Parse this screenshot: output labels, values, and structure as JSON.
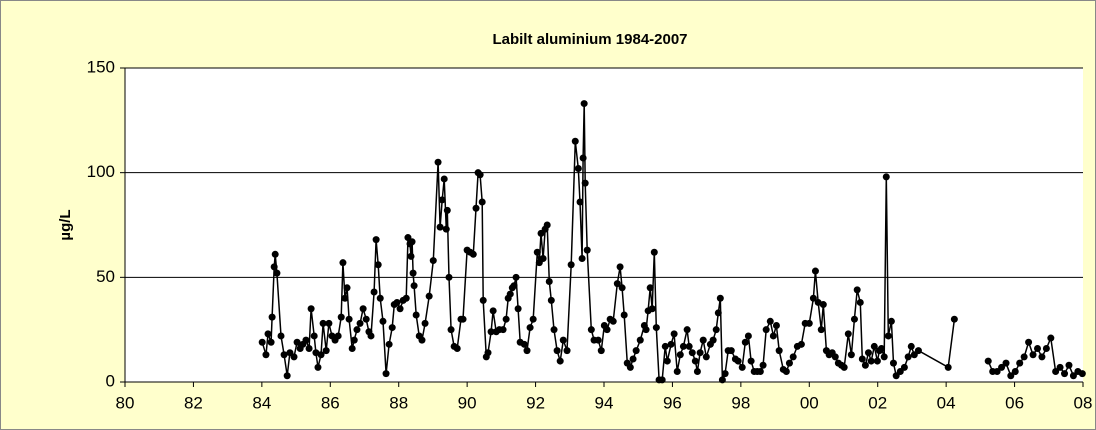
{
  "chart_data": {
    "type": "line",
    "title": "Labilt aluminium 1984-2007",
    "y_label": "µg/L",
    "color": "#000000",
    "marker": "circle",
    "grid": true,
    "xlim": [
      1980,
      2008
    ],
    "xticks": [
      {
        "value": 1980,
        "label": "80"
      },
      {
        "value": 1982,
        "label": "82"
      },
      {
        "value": 1984,
        "label": "84"
      },
      {
        "value": 1986,
        "label": "86"
      },
      {
        "value": 1988,
        "label": "88"
      },
      {
        "value": 1990,
        "label": "90"
      },
      {
        "value": 1992,
        "label": "92"
      },
      {
        "value": 1994,
        "label": "94"
      },
      {
        "value": 1996,
        "label": "96"
      },
      {
        "value": 1998,
        "label": "98"
      },
      {
        "value": 2000,
        "label": "00"
      },
      {
        "value": 2002,
        "label": "02"
      },
      {
        "value": 2004,
        "label": "04"
      },
      {
        "value": 2006,
        "label": "06"
      },
      {
        "value": 2008,
        "label": "08"
      }
    ],
    "ylim": [
      0,
      150
    ],
    "yticks": [
      0,
      50,
      100,
      150
    ],
    "x": [
      1984.01,
      1984.12,
      1984.18,
      1984.27,
      1984.3,
      1984.36,
      1984.39,
      1984.44,
      1984.56,
      1984.65,
      1984.74,
      1984.82,
      1984.94,
      1985.03,
      1985.12,
      1985.2,
      1985.29,
      1985.38,
      1985.44,
      1985.53,
      1985.58,
      1985.64,
      1985.73,
      1985.79,
      1985.88,
      1985.96,
      1986.05,
      1986.14,
      1986.23,
      1986.32,
      1986.37,
      1986.43,
      1986.49,
      1986.55,
      1986.64,
      1986.7,
      1986.78,
      1986.87,
      1986.96,
      1987.05,
      1987.13,
      1987.19,
      1987.28,
      1987.34,
      1987.4,
      1987.46,
      1987.54,
      1987.63,
      1987.72,
      1987.81,
      1987.87,
      1987.95,
      1988.04,
      1988.13,
      1988.22,
      1988.27,
      1988.33,
      1988.36,
      1988.39,
      1988.42,
      1988.45,
      1988.51,
      1988.6,
      1988.68,
      1988.77,
      1988.89,
      1989.01,
      1989.15,
      1989.21,
      1989.27,
      1989.33,
      1989.39,
      1989.42,
      1989.47,
      1989.53,
      1989.62,
      1989.71,
      1989.82,
      1989.88,
      1990.0,
      1990.09,
      1990.18,
      1990.26,
      1990.32,
      1990.38,
      1990.44,
      1990.47,
      1990.56,
      1990.61,
      1990.7,
      1990.76,
      1990.85,
      1990.94,
      1991.05,
      1991.14,
      1991.2,
      1991.26,
      1991.32,
      1991.37,
      1991.43,
      1991.49,
      1991.55,
      1991.67,
      1991.75,
      1991.84,
      1991.93,
      1992.05,
      1992.11,
      1992.16,
      1992.22,
      1992.28,
      1992.34,
      1992.4,
      1992.46,
      1992.54,
      1992.63,
      1992.72,
      1992.81,
      1992.92,
      1993.04,
      1993.16,
      1993.25,
      1993.3,
      1993.36,
      1993.39,
      1993.42,
      1993.45,
      1993.51,
      1993.63,
      1993.71,
      1993.83,
      1993.92,
      1994.01,
      1994.09,
      1994.18,
      1994.27,
      1994.39,
      1994.47,
      1994.53,
      1994.59,
      1994.68,
      1994.77,
      1994.85,
      1994.94,
      1995.06,
      1995.18,
      1995.23,
      1995.29,
      1995.35,
      1995.41,
      1995.47,
      1995.53,
      1995.61,
      1995.7,
      1995.79,
      1995.85,
      1995.96,
      1996.05,
      1996.14,
      1996.23,
      1996.32,
      1996.43,
      1996.49,
      1996.58,
      1996.67,
      1996.73,
      1996.81,
      1996.9,
      1996.99,
      1997.11,
      1997.19,
      1997.28,
      1997.34,
      1997.4,
      1997.46,
      1997.54,
      1997.63,
      1997.72,
      1997.84,
      1997.92,
      1998.04,
      1998.13,
      1998.22,
      1998.3,
      1998.39,
      1998.48,
      1998.57,
      1998.65,
      1998.74,
      1998.86,
      1998.95,
      1999.04,
      1999.12,
      1999.24,
      1999.33,
      1999.42,
      1999.53,
      1999.65,
      1999.77,
      1999.88,
      2000.0,
      2000.12,
      2000.18,
      2000.26,
      2000.35,
      2000.41,
      2000.5,
      2000.58,
      2000.67,
      2000.76,
      2000.85,
      2000.94,
      2001.02,
      2001.14,
      2001.23,
      2001.32,
      2001.4,
      2001.49,
      2001.55,
      2001.64,
      2001.73,
      2001.81,
      2001.9,
      2001.99,
      2002.05,
      2002.11,
      2002.19,
      2002.25,
      2002.31,
      2002.4,
      2002.46,
      2002.54,
      2002.66,
      2002.78,
      2002.89,
      2002.98,
      2003.07,
      2003.19,
      2004.06,
      2004.24,
      null,
      2005.23,
      2005.36,
      2005.49,
      2005.62,
      2005.75,
      2005.89,
      2006.02,
      2006.15,
      2006.28,
      2006.41,
      2006.54,
      2006.67,
      2006.8,
      2006.93,
      2007.06,
      2007.2,
      2007.33,
      2007.46,
      2007.59,
      2007.72,
      2007.85,
      2007.98
    ],
    "values": [
      19,
      13,
      23,
      19,
      31,
      55,
      61,
      52,
      22,
      13,
      3,
      14,
      12,
      19,
      16,
      18,
      20,
      16,
      35,
      22,
      14,
      7,
      13,
      28,
      15,
      28,
      22,
      20,
      22,
      31,
      57,
      40,
      45,
      30,
      16,
      20,
      25,
      28,
      35,
      30,
      24,
      22,
      43,
      68,
      56,
      40,
      29,
      4,
      18,
      26,
      37,
      38,
      35,
      39,
      40,
      69,
      66,
      60,
      67,
      52,
      46,
      32,
      22,
      20,
      28,
      41,
      58,
      105,
      74,
      87,
      97,
      73,
      82,
      50,
      25,
      17,
      16,
      30,
      30,
      63,
      62,
      61,
      83,
      100,
      99,
      86,
      39,
      12,
      14,
      24,
      34,
      24,
      25,
      25,
      30,
      40,
      42,
      45,
      46,
      50,
      35,
      19,
      18,
      15,
      26,
      30,
      62,
      57,
      71,
      59,
      73,
      75,
      48,
      39,
      25,
      15,
      10,
      20,
      15,
      56,
      115,
      102,
      86,
      59,
      107,
      133,
      95,
      63,
      25,
      20,
      20,
      15,
      27,
      25,
      30,
      29,
      47,
      55,
      45,
      32,
      9,
      7,
      11,
      15,
      20,
      27,
      25,
      34,
      45,
      35,
      62,
      26,
      1,
      1,
      17,
      10,
      18,
      23,
      5,
      13,
      17,
      25,
      17,
      14,
      10,
      5,
      14,
      20,
      12,
      18,
      20,
      25,
      33,
      40,
      1,
      4,
      15,
      15,
      11,
      10,
      7,
      19,
      22,
      10,
      5,
      5,
      5,
      8,
      25,
      29,
      22,
      27,
      15,
      6,
      5,
      9,
      12,
      17,
      18,
      28,
      28,
      40,
      53,
      38,
      25,
      37,
      15,
      13,
      14,
      12,
      9,
      8,
      7,
      23,
      13,
      30,
      44,
      38,
      11,
      8,
      14,
      10,
      17,
      10,
      15,
      16,
      12,
      98,
      22,
      29,
      9,
      3,
      5,
      7,
      12,
      17,
      13,
      15,
      7,
      30,
      null,
      10,
      5,
      5,
      7,
      9,
      3,
      5,
      9,
      12,
      19,
      13,
      16,
      12,
      16,
      21,
      5,
      7,
      4,
      8,
      3,
      5,
      4
    ]
  }
}
